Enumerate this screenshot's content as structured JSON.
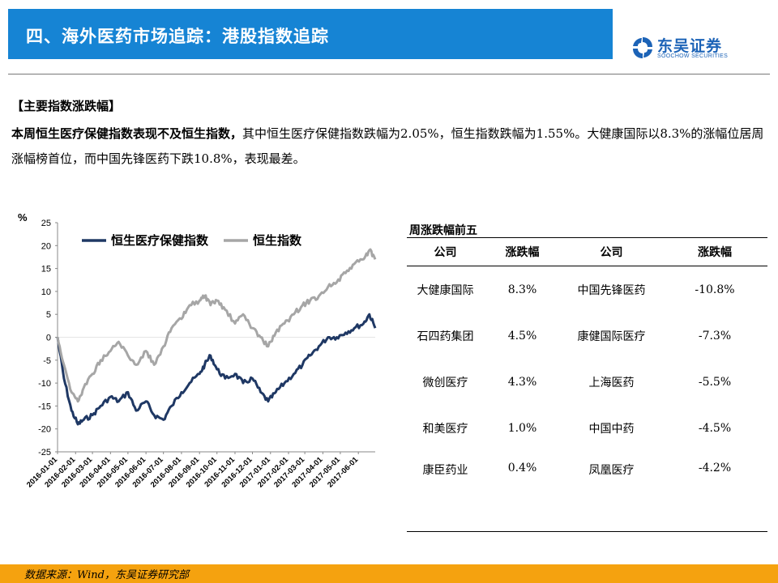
{
  "header": {
    "title": "四、海外医药市场追踪：港股指数追踪"
  },
  "logo": {
    "name": "东吴证券",
    "sub": "SOOCHOW SECURITIES",
    "mark_text": "SCS"
  },
  "section": {
    "heading": "【主要指数涨跌幅】",
    "para_bold": "本周恒生医疗保健指数表现不及恒生指数，",
    "para_rest": "其中恒生医疗保健指数跌幅为2.05%，恒生指数跌幅为1.55%。大健康国际以8.3%的涨幅位居周涨幅榜首位，而中国先锋医药下跌10.8%，表现最差。"
  },
  "chart_data": {
    "type": "line",
    "ylabel": "%",
    "ylim": [
      -25,
      25
    ],
    "yticks": [
      25,
      20,
      15,
      10,
      5,
      0,
      -5,
      -10,
      -15,
      -20,
      -25
    ],
    "xlim": [
      "2016-01-01",
      "2017-06-30"
    ],
    "xticks": [
      "2016-01-01",
      "2016-02-01",
      "2016-03-01",
      "2016-04-01",
      "2016-05-01",
      "2016-06-01",
      "2016-07-01",
      "2016-08-01",
      "2016-09-01",
      "2016-10-01",
      "2016-11-01",
      "2016-12-01",
      "2017-01-01",
      "2017-02-01",
      "2017-03-01",
      "2017-04-01",
      "2017-05-01",
      "2017-06-01"
    ],
    "legend_position": "top",
    "series": [
      {
        "name": "恒生医疗保健指数",
        "color": "#1f3864",
        "points": [
          [
            "2016-01-01",
            0
          ],
          [
            "2016-01-12",
            -9
          ],
          [
            "2016-01-25",
            -16
          ],
          [
            "2016-02-05",
            -19
          ],
          [
            "2016-02-15",
            -18
          ],
          [
            "2016-03-01",
            -17
          ],
          [
            "2016-03-15",
            -15
          ],
          [
            "2016-04-01",
            -13
          ],
          [
            "2016-04-15",
            -14
          ],
          [
            "2016-05-01",
            -12
          ],
          [
            "2016-05-15",
            -16
          ],
          [
            "2016-06-01",
            -14
          ],
          [
            "2016-06-15",
            -17
          ],
          [
            "2016-07-01",
            -18
          ],
          [
            "2016-07-15",
            -15
          ],
          [
            "2016-08-01",
            -12
          ],
          [
            "2016-08-15",
            -10
          ],
          [
            "2016-09-01",
            -8
          ],
          [
            "2016-09-10",
            -6
          ],
          [
            "2016-09-20",
            -4
          ],
          [
            "2016-10-01",
            -7
          ],
          [
            "2016-10-15",
            -9
          ],
          [
            "2016-11-01",
            -8
          ],
          [
            "2016-11-15",
            -10
          ],
          [
            "2016-12-01",
            -9
          ],
          [
            "2016-12-15",
            -12
          ],
          [
            "2016-12-28",
            -14
          ],
          [
            "2017-01-10",
            -12
          ],
          [
            "2017-01-25",
            -10
          ],
          [
            "2017-02-10",
            -8
          ],
          [
            "2017-02-25",
            -6
          ],
          [
            "2017-03-10",
            -4
          ],
          [
            "2017-03-25",
            -2
          ],
          [
            "2017-04-10",
            0
          ],
          [
            "2017-04-25",
            0
          ],
          [
            "2017-05-10",
            1
          ],
          [
            "2017-05-25",
            2
          ],
          [
            "2017-06-10",
            3
          ],
          [
            "2017-06-20",
            5
          ],
          [
            "2017-06-30",
            2
          ]
        ]
      },
      {
        "name": "恒生指数",
        "color": "#a6a6a6",
        "points": [
          [
            "2016-01-01",
            0
          ],
          [
            "2016-01-12",
            -6
          ],
          [
            "2016-01-25",
            -12
          ],
          [
            "2016-02-05",
            -14
          ],
          [
            "2016-02-15",
            -11
          ],
          [
            "2016-03-01",
            -8
          ],
          [
            "2016-03-15",
            -5
          ],
          [
            "2016-04-01",
            -3
          ],
          [
            "2016-04-15",
            -1
          ],
          [
            "2016-05-01",
            -4
          ],
          [
            "2016-05-15",
            -6
          ],
          [
            "2016-06-01",
            -3
          ],
          [
            "2016-06-15",
            -6
          ],
          [
            "2016-07-01",
            -2
          ],
          [
            "2016-07-15",
            2
          ],
          [
            "2016-08-01",
            4
          ],
          [
            "2016-08-15",
            7
          ],
          [
            "2016-09-01",
            8
          ],
          [
            "2016-09-10",
            9
          ],
          [
            "2016-09-20",
            7
          ],
          [
            "2016-10-01",
            8
          ],
          [
            "2016-10-15",
            6
          ],
          [
            "2016-11-01",
            3
          ],
          [
            "2016-11-15",
            5
          ],
          [
            "2016-12-01",
            2
          ],
          [
            "2016-12-15",
            0
          ],
          [
            "2016-12-28",
            -2
          ],
          [
            "2017-01-10",
            1
          ],
          [
            "2017-01-25",
            3
          ],
          [
            "2017-02-10",
            5
          ],
          [
            "2017-02-25",
            7
          ],
          [
            "2017-03-10",
            8
          ],
          [
            "2017-03-25",
            9
          ],
          [
            "2017-04-10",
            11
          ],
          [
            "2017-04-25",
            12
          ],
          [
            "2017-05-10",
            14
          ],
          [
            "2017-05-25",
            16
          ],
          [
            "2017-06-10",
            17
          ],
          [
            "2017-06-20",
            19
          ],
          [
            "2017-06-30",
            17
          ]
        ]
      }
    ]
  },
  "table": {
    "title": "周涨跌幅前五",
    "headers": [
      "公司",
      "涨跌幅",
      "公司",
      "涨跌幅"
    ],
    "rows": [
      [
        "大健康国际",
        "8.3%",
        "中国先锋医药",
        "-10.8%"
      ],
      [
        "石四药集团",
        "4.5%",
        "康健国际医疗",
        "-7.3%"
      ],
      [
        "微创医疗",
        "4.3%",
        "上海医药",
        "-5.5%"
      ],
      [
        "和美医疗",
        "1.0%",
        "中国中药",
        "-4.5%"
      ],
      [
        "康臣药业",
        "0.4%",
        "凤凰医疗",
        "-4.2%"
      ]
    ]
  },
  "footer": {
    "source": "数据来源：Wind，东吴证券研究部"
  }
}
